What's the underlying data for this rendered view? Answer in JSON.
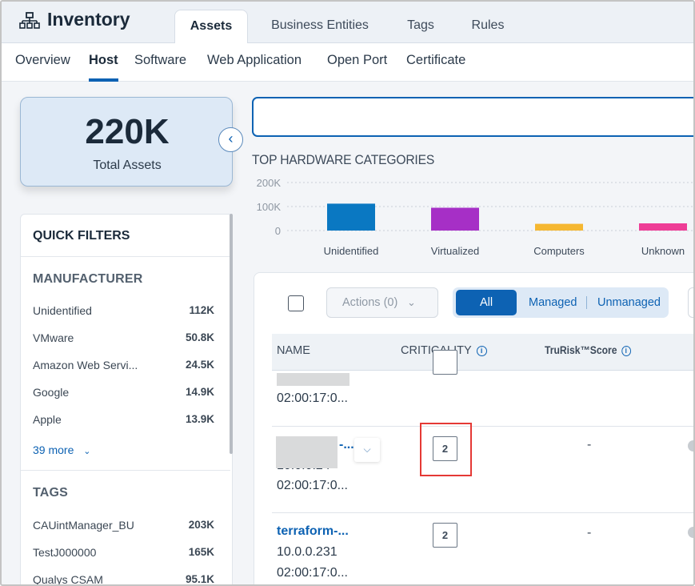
{
  "header": {
    "app_title": "Inventory",
    "tabs": [
      {
        "label": "Assets",
        "active": true
      },
      {
        "label": "Business Entities",
        "active": false
      },
      {
        "label": "Tags",
        "active": false
      },
      {
        "label": "Rules",
        "active": false
      }
    ]
  },
  "subnav": {
    "items": [
      {
        "label": "Overview"
      },
      {
        "label": "Host",
        "active": true
      },
      {
        "label": "Software"
      },
      {
        "label": "Web Application"
      },
      {
        "label": "Open Port"
      },
      {
        "label": "Certificate"
      }
    ]
  },
  "summary": {
    "total_value": "220K",
    "total_label": "Total Assets"
  },
  "quick_filters": {
    "title": "QUICK FILTERS",
    "manufacturer": {
      "title": "MANUFACTURER",
      "items": [
        {
          "label": "Unidentified",
          "count": "112K"
        },
        {
          "label": "VMware",
          "count": "50.8K"
        },
        {
          "label": "Amazon Web Servi...",
          "count": "24.5K"
        },
        {
          "label": "Google",
          "count": "14.9K"
        },
        {
          "label": "Apple",
          "count": "13.9K"
        }
      ],
      "more_label": "39 more"
    },
    "tags": {
      "title": "TAGS",
      "items": [
        {
          "label": "CAUintManager_BU",
          "count": "203K"
        },
        {
          "label": "TestJ000000",
          "count": "165K"
        },
        {
          "label": "Qualys CSAM",
          "count": "95.1K"
        }
      ]
    }
  },
  "search": {
    "placeholder": ""
  },
  "chart_data": {
    "type": "bar",
    "title": "TOP HARDWARE CATEGORIES",
    "categories": [
      "Unidentified",
      "Virtualized",
      "Computers",
      "Unknown"
    ],
    "values": [
      112000,
      95000,
      28000,
      30000
    ],
    "y_ticks": [
      "200K",
      "100K",
      "0"
    ],
    "ylim": [
      0,
      200000
    ],
    "colors": [
      "#0a78c2",
      "#a62fc6",
      "#f5b731",
      "#ee3d96"
    ],
    "grid": true
  },
  "table": {
    "actions_label": "Actions (0)",
    "filter_all": "All",
    "filter_managed": "Managed",
    "filter_unmanaged": "Unmanaged",
    "columns": {
      "name": "NAME",
      "criticality": "CRITICALITY",
      "trurisk": "TruRisk™Score"
    },
    "rows": [
      {
        "name": "",
        "ip": "",
        "mac": "02:00:17:0...",
        "criticality": "",
        "trurisk": ""
      },
      {
        "name": "-...",
        "ip": "10.0.0.24",
        "mac": "02:00:17:0...",
        "criticality": "2",
        "trurisk": "-"
      },
      {
        "name": "terraform-...",
        "ip": "10.0.0.231",
        "mac": "02:00:17:0...",
        "criticality": "2",
        "trurisk": "-"
      }
    ]
  }
}
